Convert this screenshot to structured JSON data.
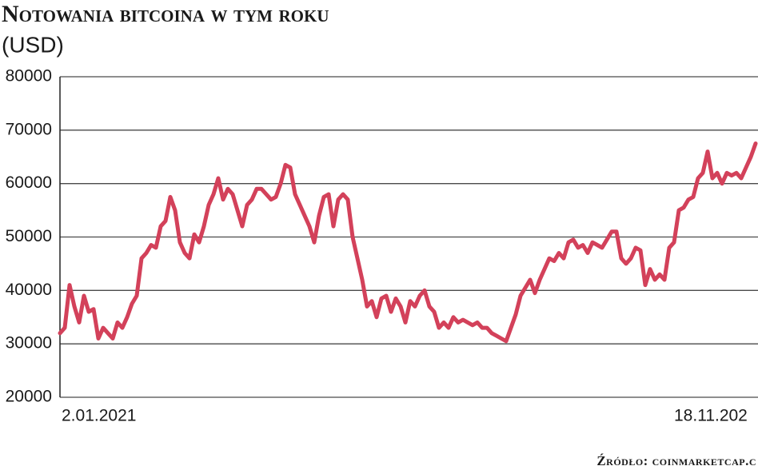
{
  "chart_data": {
    "type": "line",
    "title": "Notowania bitcoina w tym roku",
    "subtitle": "(USD)",
    "source": "Źródło: coinmarketcap.c",
    "color": "#d3415a",
    "grid": true,
    "ylim": [
      20000,
      80000
    ],
    "yticks": [
      20000,
      30000,
      40000,
      50000,
      60000,
      70000,
      80000
    ],
    "categories": [
      "2.01.2021",
      null,
      null,
      null,
      null,
      null,
      null,
      null,
      null,
      null,
      null,
      null,
      null,
      null,
      null,
      null,
      null,
      null,
      null,
      null,
      null,
      null,
      null,
      null,
      null,
      null,
      null,
      null,
      null,
      null,
      null,
      null,
      null,
      null,
      null,
      null,
      null,
      null,
      null,
      null,
      null,
      null,
      null,
      null,
      null,
      null,
      null,
      null,
      null,
      null,
      null,
      null,
      null,
      null,
      null,
      null,
      null,
      null,
      null,
      null,
      null,
      null,
      null,
      null,
      null,
      null,
      null,
      null,
      null,
      null,
      null,
      null,
      null,
      null,
      null,
      null,
      null,
      null,
      null,
      null,
      null,
      null,
      null,
      null,
      null,
      null,
      null,
      null,
      null,
      null,
      null,
      null,
      null,
      null,
      null,
      null,
      null,
      null,
      null,
      null,
      null,
      null,
      null,
      null,
      null,
      null,
      null,
      null,
      null,
      null,
      null,
      null,
      null,
      null,
      null,
      null,
      null,
      null,
      null,
      null,
      null,
      null,
      null,
      null,
      null,
      null,
      null,
      null,
      null,
      null,
      null,
      null,
      null,
      null,
      null,
      null,
      null,
      null,
      null,
      null,
      null,
      null,
      null,
      null,
      null,
      "18.11.202"
    ],
    "values": [
      32000,
      33000,
      41000,
      37000,
      34000,
      39000,
      36000,
      36500,
      31000,
      33000,
      32000,
      31000,
      34000,
      33000,
      35000,
      37500,
      39000,
      46000,
      47000,
      48500,
      48000,
      52000,
      53000,
      57500,
      55000,
      49000,
      47000,
      46000,
      50500,
      49000,
      52000,
      56000,
      58000,
      61000,
      57000,
      59000,
      58000,
      55000,
      52000,
      56000,
      57000,
      59000,
      59000,
      58000,
      57000,
      57500,
      60000,
      63500,
      63000,
      58000,
      56000,
      54000,
      52000,
      49000,
      54000,
      57500,
      58000,
      52000,
      57000,
      58000,
      57000,
      50000,
      46000,
      42000,
      37000,
      38000,
      35000,
      38500,
      39000,
      36000,
      38500,
      37000,
      34000,
      38000,
      37000,
      39000,
      40000,
      37000,
      36000,
      33000,
      34000,
      33000,
      35000,
      34000,
      34500,
      34000,
      33500,
      34000,
      33000,
      33000,
      32000,
      31500,
      31000,
      30500,
      33000,
      35500,
      39000,
      40500,
      42000,
      39500,
      42000,
      44000,
      46000,
      45500,
      47000,
      46000,
      49000,
      49500,
      48000,
      48500,
      47000,
      49000,
      48500,
      48000,
      49500,
      51000,
      51000,
      46000,
      45000,
      46000,
      48000,
      47500,
      41000,
      44000,
      42000,
      43000,
      42000,
      48000,
      49000,
      55000,
      55500,
      57000,
      57500,
      61000,
      62000,
      66000,
      61000,
      62000,
      60000,
      62000,
      61500,
      62000,
      61000,
      63000,
      65000,
      67500
    ]
  }
}
